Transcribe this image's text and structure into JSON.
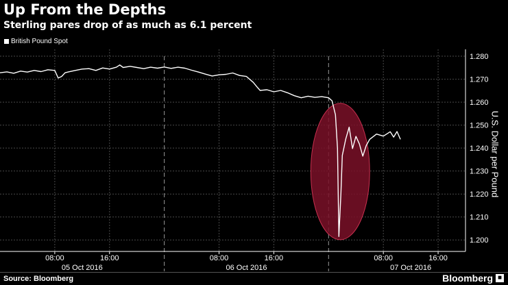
{
  "header": {
    "title": "Up From the Depths",
    "subtitle": "Sterling pares drop of as much as 6.1 percent"
  },
  "footer": {
    "source": "Source: Bloomberg",
    "brand": "Bloomberg"
  },
  "colors": {
    "background": "#000000",
    "line": "#ffffff",
    "highlight": "#7a1128",
    "grid": "#4a4a4a"
  },
  "chart_data": {
    "type": "line",
    "title": "Up From the Depths",
    "subtitle": "Sterling pares drop of as much as 6.1 percent",
    "ylabel": "U.S. Dollar per Pound",
    "ylim": [
      1.195,
      1.283
    ],
    "xlim": [
      0,
      68
    ],
    "grid": true,
    "legend_position": "top-left",
    "y_ticks": [
      "1.280",
      "1.270",
      "1.260",
      "1.250",
      "1.240",
      "1.230",
      "1.220",
      "1.210",
      "1.200"
    ],
    "y_tick_values": [
      1.28,
      1.27,
      1.26,
      1.25,
      1.24,
      1.23,
      1.22,
      1.21,
      1.2
    ],
    "x_ticks": [
      {
        "h": 8,
        "label": "08:00"
      },
      {
        "h": 16,
        "label": "16:00"
      },
      {
        "h": 32,
        "label": "08:00"
      },
      {
        "h": 40,
        "label": "16:00"
      },
      {
        "h": 56,
        "label": "08:00"
      },
      {
        "h": 64,
        "label": "16:00"
      }
    ],
    "x_date_labels": [
      {
        "h": 12,
        "label": "05 Oct 2016"
      },
      {
        "h": 36,
        "label": "06 Oct 2016"
      },
      {
        "h": 60,
        "label": "07 Oct 2016"
      }
    ],
    "day_separators": [
      24,
      48
    ],
    "highlight": {
      "x_center": 49.7,
      "x_radius": 4.3,
      "y_center": 1.2298,
      "y_radius": 0.0297
    },
    "series": [
      {
        "name": "British Pound Spot",
        "x": [
          0,
          1,
          2,
          3,
          4,
          5,
          6,
          7,
          8,
          8.5,
          9,
          9.5,
          10,
          11,
          12,
          13,
          14,
          15,
          16,
          17,
          17.5,
          18,
          19,
          20,
          21,
          22,
          23,
          24,
          25,
          26,
          27,
          28,
          29,
          30,
          31,
          32,
          33,
          34,
          35,
          36,
          37,
          37.5,
          38,
          39,
          40,
          41,
          42,
          43,
          44,
          45,
          46,
          47,
          48,
          48.5,
          49,
          49.3,
          49.5,
          49.8,
          50,
          50.5,
          51,
          51.5,
          52,
          52.5,
          53,
          53.5,
          54,
          55,
          56,
          57,
          57.5,
          58,
          58.5
        ],
        "values": [
          1.2728,
          1.2732,
          1.2726,
          1.2735,
          1.2731,
          1.2738,
          1.2733,
          1.2741,
          1.2738,
          1.2705,
          1.2712,
          1.2728,
          1.2732,
          1.2738,
          1.2744,
          1.2746,
          1.2738,
          1.2749,
          1.2744,
          1.2752,
          1.2762,
          1.2751,
          1.2756,
          1.2751,
          1.2746,
          1.2752,
          1.2748,
          1.2753,
          1.2747,
          1.2752,
          1.2748,
          1.2739,
          1.2731,
          1.2722,
          1.2714,
          1.2719,
          1.2721,
          1.2727,
          1.2716,
          1.2712,
          1.2686,
          1.2668,
          1.2651,
          1.2654,
          1.2645,
          1.2651,
          1.2641,
          1.2628,
          1.2619,
          1.2626,
          1.2621,
          1.2624,
          1.2619,
          1.2606,
          1.2545,
          1.2398,
          1.2015,
          1.2202,
          1.2368,
          1.2439,
          1.2491,
          1.2398,
          1.2451,
          1.2418,
          1.2365,
          1.2411,
          1.2438,
          1.2461,
          1.2452,
          1.2471,
          1.2448,
          1.2472,
          1.2438
        ]
      }
    ]
  }
}
